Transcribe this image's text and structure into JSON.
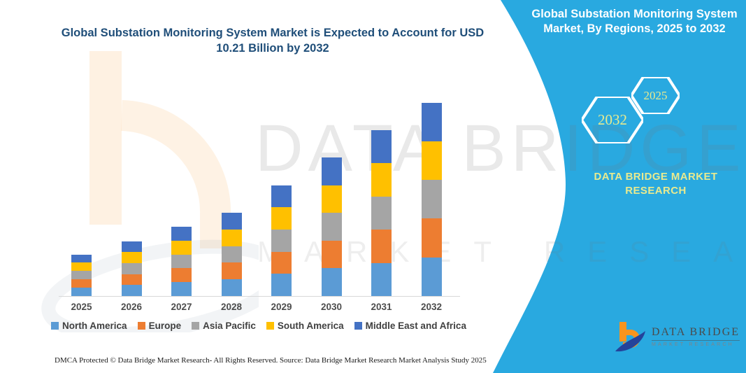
{
  "page": {
    "left_title": "Global Substation Monitoring System Market is Expected to Account for USD 10.21 Billion by 2032",
    "footer_left": "DMCA Protected © Data Bridge Market Research-  All Rights Reserved.",
    "footer_source": "Source: Data Bridge Market Research  Market Analysis Study 2025"
  },
  "right_panel": {
    "title": "Global Substation Monitoring System Market, By Regions, 2025 to 2032",
    "hexagons": [
      {
        "label": "2032"
      },
      {
        "label": "2025"
      }
    ],
    "brand_text": "DATA BRIDGE MARKET RESEARCH",
    "background_color": "#29a9e0",
    "accent_text_color": "#e8ea8f"
  },
  "logo": {
    "name": "DATA BRIDGE",
    "subtitle": "MARKET RESEARCH",
    "orange": "#f7941d",
    "navy": "#24439b"
  },
  "watermark": {
    "line1": "DATA BRIDGE",
    "line2": "MARKET RESEARCH"
  },
  "colors": {
    "headline_blue": "#1f4e79",
    "axis_line": "#d9d9d9"
  },
  "chart_data": {
    "type": "bar",
    "stacked": true,
    "title": "Global Substation Monitoring System Market, By Regions, 2025 to 2032",
    "units": "USD Billion",
    "categories": [
      "2025",
      "2026",
      "2027",
      "2028",
      "2029",
      "2030",
      "2031",
      "2032"
    ],
    "series": [
      {
        "name": "North America",
        "color": "#5b9bd5",
        "values": [
          0.44,
          0.58,
          0.73,
          0.88,
          1.17,
          1.46,
          1.75,
          2.04
        ]
      },
      {
        "name": "Europe",
        "color": "#ed7d31",
        "values": [
          0.44,
          0.58,
          0.73,
          0.88,
          1.17,
          1.46,
          1.75,
          2.04
        ]
      },
      {
        "name": "Asia Pacific",
        "color": "#a5a5a5",
        "values": [
          0.44,
          0.58,
          0.73,
          0.88,
          1.17,
          1.46,
          1.75,
          2.04
        ]
      },
      {
        "name": "South America",
        "color": "#ffc000",
        "values": [
          0.44,
          0.58,
          0.73,
          0.88,
          1.17,
          1.46,
          1.75,
          2.04
        ]
      },
      {
        "name": "Middle East and Africa",
        "color": "#4472c4",
        "values": [
          0.44,
          0.58,
          0.73,
          0.88,
          1.17,
          1.46,
          1.75,
          2.04
        ]
      }
    ],
    "totals": [
      2.2,
      2.9,
      3.65,
      4.4,
      5.85,
      7.3,
      8.75,
      10.21
    ],
    "ylim": [
      0,
      10.5
    ],
    "grid": false,
    "value_axis_visible": false,
    "legend_position": "bottom"
  }
}
